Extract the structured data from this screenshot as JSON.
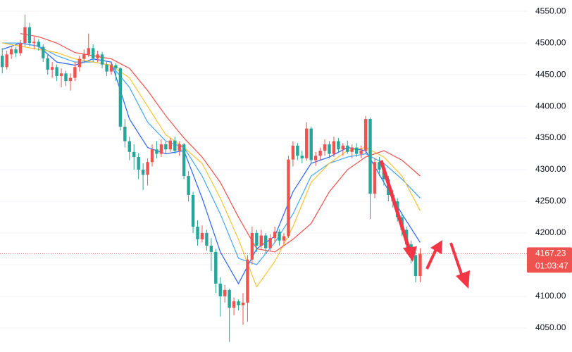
{
  "chart_data": {
    "type": "candlestick",
    "ylim": [
      4012,
      4568
    ],
    "xlim": [
      -0.5,
      115.5
    ],
    "yticks": [
      {
        "value": 4050,
        "label": "4050.00"
      },
      {
        "value": 4100,
        "label": "4100.00"
      },
      {
        "value": 4150,
        "label": "4150.00"
      },
      {
        "value": 4200,
        "label": "4200.00"
      },
      {
        "value": 4250,
        "label": "4250.00"
      },
      {
        "value": 4300,
        "label": "4300.00"
      },
      {
        "value": 4350,
        "label": "4350.00"
      },
      {
        "value": 4400,
        "label": "4400.00"
      },
      {
        "value": 4450,
        "label": "4450.00"
      },
      {
        "value": 4500,
        "label": "4500.00"
      },
      {
        "value": 4550,
        "label": "4550.00"
      }
    ],
    "grid": true,
    "up_color": "#ef5350",
    "down_color": "#26a69a",
    "ohlc": [
      [
        4480,
        4492,
        4452,
        4462
      ],
      [
        4462,
        4488,
        4458,
        4482
      ],
      [
        4482,
        4495,
        4475,
        4490
      ],
      [
        4490,
        4494,
        4478,
        4484
      ],
      [
        4484,
        4505,
        4480,
        4500
      ],
      [
        4500,
        4545,
        4495,
        4525
      ],
      [
        4525,
        4532,
        4495,
        4500
      ],
      [
        4500,
        4510,
        4490,
        4502
      ],
      [
        4502,
        4506,
        4488,
        4494
      ],
      [
        4494,
        4498,
        4470,
        4476
      ],
      [
        4476,
        4482,
        4450,
        4458
      ],
      [
        4458,
        4470,
        4445,
        4462
      ],
      [
        4462,
        4466,
        4440,
        4448
      ],
      [
        4448,
        4460,
        4430,
        4452
      ],
      [
        4452,
        4456,
        4432,
        4440
      ],
      [
        4440,
        4452,
        4425,
        4445
      ],
      [
        4445,
        4470,
        4440,
        4462
      ],
      [
        4462,
        4480,
        4455,
        4475
      ],
      [
        4475,
        4490,
        4468,
        4482
      ],
      [
        4482,
        4515,
        4478,
        4492
      ],
      [
        4492,
        4498,
        4470,
        4476
      ],
      [
        4476,
        4488,
        4470,
        4482
      ],
      [
        4482,
        4486,
        4460,
        4466
      ],
      [
        4466,
        4472,
        4448,
        4455
      ],
      [
        4455,
        4470,
        4450,
        4465
      ],
      [
        4465,
        4468,
        4440,
        4460
      ],
      [
        4460,
        4462,
        4362,
        4368
      ],
      [
        4368,
        4380,
        4335,
        4345
      ],
      [
        4345,
        4352,
        4315,
        4328
      ],
      [
        4328,
        4340,
        4300,
        4320
      ],
      [
        4320,
        4326,
        4285,
        4300
      ],
      [
        4300,
        4310,
        4268,
        4292
      ],
      [
        4292,
        4318,
        4275,
        4312
      ],
      [
        4312,
        4340,
        4305,
        4332
      ],
      [
        4332,
        4345,
        4318,
        4325
      ],
      [
        4325,
        4348,
        4320,
        4340
      ],
      [
        4340,
        4344,
        4325,
        4332
      ],
      [
        4332,
        4350,
        4328,
        4346
      ],
      [
        4346,
        4352,
        4325,
        4330
      ],
      [
        4330,
        4345,
        4322,
        4340
      ],
      [
        4340,
        4342,
        4285,
        4290
      ],
      [
        4290,
        4298,
        4250,
        4260
      ],
      [
        4260,
        4265,
        4200,
        4210
      ],
      [
        4210,
        4220,
        4180,
        4190
      ],
      [
        4190,
        4212,
        4185,
        4200
      ],
      [
        4200,
        4205,
        4172,
        4180
      ],
      [
        4180,
        4192,
        4140,
        4170
      ],
      [
        4170,
        4175,
        4105,
        4120
      ],
      [
        4120,
        4130,
        4068,
        4100
      ],
      [
        4100,
        4118,
        4090,
        4110
      ],
      [
        4110,
        4112,
        4028,
        4082
      ],
      [
        4082,
        4098,
        4070,
        4092
      ],
      [
        4092,
        4095,
        4078,
        4086
      ],
      [
        4086,
        4105,
        4055,
        4090
      ],
      [
        4090,
        4165,
        4060,
        4158
      ],
      [
        4158,
        4210,
        4150,
        4200
      ],
      [
        4200,
        4205,
        4170,
        4180
      ],
      [
        4180,
        4205,
        4175,
        4196
      ],
      [
        4196,
        4200,
        4168,
        4176
      ],
      [
        4176,
        4198,
        4172,
        4192
      ],
      [
        4192,
        4210,
        4185,
        4202
      ],
      [
        4202,
        4206,
        4180,
        4188
      ],
      [
        4188,
        4200,
        4182,
        4195
      ],
      [
        4195,
        4322,
        4192,
        4316
      ],
      [
        4316,
        4345,
        4305,
        4338
      ],
      [
        4338,
        4342,
        4315,
        4322
      ],
      [
        4322,
        4330,
        4310,
        4318
      ],
      [
        4318,
        4375,
        4314,
        4365
      ],
      [
        4365,
        4368,
        4310,
        4315
      ],
      [
        4315,
        4328,
        4306,
        4322
      ],
      [
        4322,
        4335,
        4315,
        4330
      ],
      [
        4330,
        4348,
        4322,
        4340
      ],
      [
        4340,
        4345,
        4318,
        4325
      ],
      [
        4325,
        4352,
        4320,
        4345
      ],
      [
        4345,
        4350,
        4328,
        4332
      ],
      [
        4332,
        4342,
        4322,
        4338
      ],
      [
        4338,
        4346,
        4325,
        4328
      ],
      [
        4328,
        4340,
        4318,
        4335
      ],
      [
        4335,
        4342,
        4320,
        4325
      ],
      [
        4325,
        4338,
        4318,
        4330
      ],
      [
        4330,
        4385,
        4325,
        4380
      ],
      [
        4380,
        4382,
        4222,
        4262
      ],
      [
        4262,
        4318,
        4255,
        4312
      ],
      [
        4312,
        4320,
        4290,
        4300
      ],
      [
        4300,
        4306,
        4275,
        4285
      ],
      [
        4285,
        4290,
        4250,
        4260
      ],
      [
        4260,
        4268,
        4240,
        4250
      ],
      [
        4250,
        4255,
        4218,
        4225
      ],
      [
        4225,
        4232,
        4195,
        4205
      ],
      [
        4205,
        4210,
        4170,
        4182
      ],
      [
        4182,
        4188,
        4152,
        4165
      ],
      [
        4165,
        4170,
        4122,
        4132
      ],
      [
        4132,
        4176,
        4122,
        4167.23
      ]
    ],
    "series": [
      {
        "color": "#2962ff",
        "x": [
          0,
          4,
          8,
          12,
          16,
          20,
          24,
          28,
          32,
          36,
          40,
          44,
          48,
          52,
          56,
          60,
          64,
          68,
          72,
          76,
          80,
          84,
          88,
          92
        ],
        "values": [
          4490,
          4500,
          4495,
          4470,
          4465,
          4475,
          4470,
          4380,
          4335,
          4325,
          4330,
          4255,
          4170,
          4120,
          4175,
          4195,
          4265,
          4310,
          4320,
          4335,
          4330,
          4280,
          4230,
          4185
        ]
      },
      {
        "color": "#42a5f5",
        "x": [
          0,
          4,
          8,
          12,
          16,
          20,
          24,
          28,
          32,
          36,
          40,
          44,
          48,
          52,
          56,
          60,
          64,
          68,
          72,
          76,
          80,
          84,
          88,
          92
        ],
        "values": [
          4500,
          4500,
          4495,
          4480,
          4470,
          4470,
          4465,
          4430,
          4375,
          4345,
          4335,
          4290,
          4230,
          4160,
          4150,
          4185,
          4230,
          4290,
          4310,
          4320,
          4325,
          4310,
          4285,
          4255
        ]
      },
      {
        "color": "#f7c531",
        "x": [
          0,
          4,
          8,
          12,
          16,
          20,
          24,
          28,
          32,
          36,
          40,
          44,
          48,
          52,
          56,
          60,
          64,
          68,
          72,
          76,
          80,
          84,
          88,
          92
        ],
        "values": [
          4500,
          4495,
          4490,
          4485,
          4475,
          4470,
          4465,
          4445,
          4400,
          4355,
          4335,
          4310,
          4255,
          4190,
          4115,
          4155,
          4210,
          4280,
          4310,
          4330,
          4335,
          4320,
          4290,
          4235
        ]
      },
      {
        "color": "#f0504a",
        "x": [
          0,
          4,
          8,
          12,
          16,
          20,
          24,
          28,
          32,
          36,
          40,
          44,
          48,
          52,
          56,
          60,
          64,
          68,
          72,
          76,
          80,
          84,
          88,
          92
        ],
        "values": [
          null,
          4515,
          4510,
          4500,
          4485,
          4480,
          4475,
          4460,
          4425,
          4385,
          4350,
          4320,
          4280,
          4225,
          4175,
          4170,
          4190,
          4215,
          4265,
          4300,
          4320,
          4330,
          4315,
          4290
        ]
      }
    ],
    "last_price": {
      "value": 4167.23,
      "label": "4167.23"
    },
    "countdown": "01:03:47"
  }
}
